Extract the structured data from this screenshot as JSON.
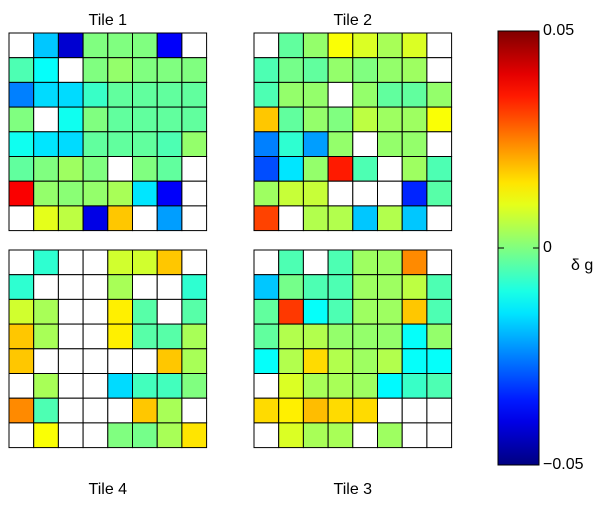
{
  "chart_data": {
    "type": "heatmap",
    "colormap": "jet",
    "missing_color": "#ffffff",
    "grid_color": "#000000",
    "value_range": [
      -0.05,
      0.05
    ],
    "colorbar": {
      "label": "δ g",
      "ticks": [
        {
          "value": 0.05,
          "label": "0.05"
        },
        {
          "value": 0,
          "label": "0"
        },
        {
          "value": -0.05,
          "label": "−0.05"
        }
      ]
    },
    "tiles": [
      {
        "title": "Tile 1",
        "position": "top-left",
        "values": [
          [
            null,
            -0.018,
            -0.042,
            0.0,
            0.0,
            0.0,
            -0.038,
            null
          ],
          [
            -0.005,
            -0.012,
            null,
            0.0,
            0.002,
            0.0,
            0.0,
            0.0
          ],
          [
            -0.025,
            -0.016,
            -0.016,
            -0.007,
            -0.003,
            -0.003,
            -0.003,
            -0.003
          ],
          [
            0.0,
            null,
            -0.011,
            0.0,
            -0.003,
            -0.003,
            -0.003,
            -0.003
          ],
          [
            -0.011,
            -0.015,
            -0.016,
            -0.003,
            -0.003,
            -0.003,
            -0.005,
            0.002
          ],
          [
            -0.003,
            0.0,
            0.003,
            0.0,
            null,
            0.0,
            -0.003,
            null
          ],
          [
            0.038,
            0.002,
            0.001,
            0.002,
            0.004,
            -0.015,
            -0.038,
            null
          ],
          [
            null,
            0.01,
            0.006,
            -0.04,
            0.018,
            null,
            -0.022,
            null
          ]
        ]
      },
      {
        "title": "Tile 2",
        "position": "top-right",
        "values": [
          [
            null,
            -0.003,
            0.002,
            0.012,
            0.009,
            0.004,
            0.009,
            null
          ],
          [
            -0.005,
            -0.001,
            -0.003,
            0.002,
            0.0,
            0.002,
            0.003,
            null
          ],
          [
            -0.005,
            0.002,
            0.002,
            null,
            0.002,
            -0.003,
            -0.003,
            0.002
          ],
          [
            0.018,
            -0.003,
            0.002,
            0.0,
            0.006,
            0.003,
            0.003,
            0.012
          ],
          [
            -0.025,
            -0.008,
            -0.022,
            0.002,
            null,
            0.002,
            0.002,
            null
          ],
          [
            -0.03,
            -0.015,
            0.002,
            0.035,
            -0.005,
            null,
            0.003,
            -0.005
          ],
          [
            0.003,
            0.007,
            0.007,
            null,
            null,
            null,
            -0.034,
            -0.004
          ],
          [
            0.031,
            null,
            0.005,
            0.005,
            -0.018,
            0.005,
            -0.018,
            null
          ]
        ]
      },
      {
        "title": "Tile 4",
        "position": "bottom-left",
        "values": [
          [
            null,
            -0.008,
            null,
            null,
            0.008,
            0.008,
            0.018,
            null
          ],
          [
            -0.008,
            null,
            null,
            null,
            0.004,
            null,
            null,
            -0.008
          ],
          [
            0.008,
            0.004,
            null,
            null,
            0.014,
            -0.004,
            null,
            -0.004
          ],
          [
            0.018,
            0.004,
            null,
            null,
            0.014,
            -0.004,
            -0.004,
            0.004
          ],
          [
            0.018,
            null,
            null,
            null,
            null,
            null,
            0.018,
            0.004
          ],
          [
            null,
            0.004,
            null,
            null,
            -0.016,
            -0.006,
            -0.006,
            0.0
          ],
          [
            0.024,
            -0.005,
            null,
            null,
            null,
            0.018,
            0.004,
            null
          ],
          [
            null,
            0.012,
            null,
            null,
            0.0,
            -0.001,
            0.004,
            0.015
          ]
        ]
      },
      {
        "title": "Tile 3",
        "position": "bottom-right",
        "values": [
          [
            null,
            -0.005,
            null,
            -0.005,
            0.003,
            0.003,
            0.024,
            null
          ],
          [
            -0.018,
            -0.001,
            -0.005,
            -0.005,
            0.003,
            0.003,
            0.006,
            -0.005
          ],
          [
            -0.003,
            0.032,
            -0.012,
            -0.005,
            0.003,
            0.003,
            0.018,
            -0.005
          ],
          [
            -0.003,
            0.005,
            0.005,
            0.002,
            0.002,
            0.002,
            -0.012,
            0.002
          ],
          [
            -0.012,
            0.005,
            0.016,
            0.005,
            0.003,
            0.005,
            -0.012,
            -0.012
          ],
          [
            null,
            0.009,
            0.004,
            0.004,
            0.003,
            -0.013,
            -0.007,
            -0.005
          ],
          [
            0.016,
            0.014,
            0.019,
            0.016,
            0.016,
            null,
            null,
            null
          ],
          [
            null,
            0.009,
            0.004,
            0.004,
            null,
            0.003,
            null,
            null
          ]
        ]
      }
    ]
  }
}
